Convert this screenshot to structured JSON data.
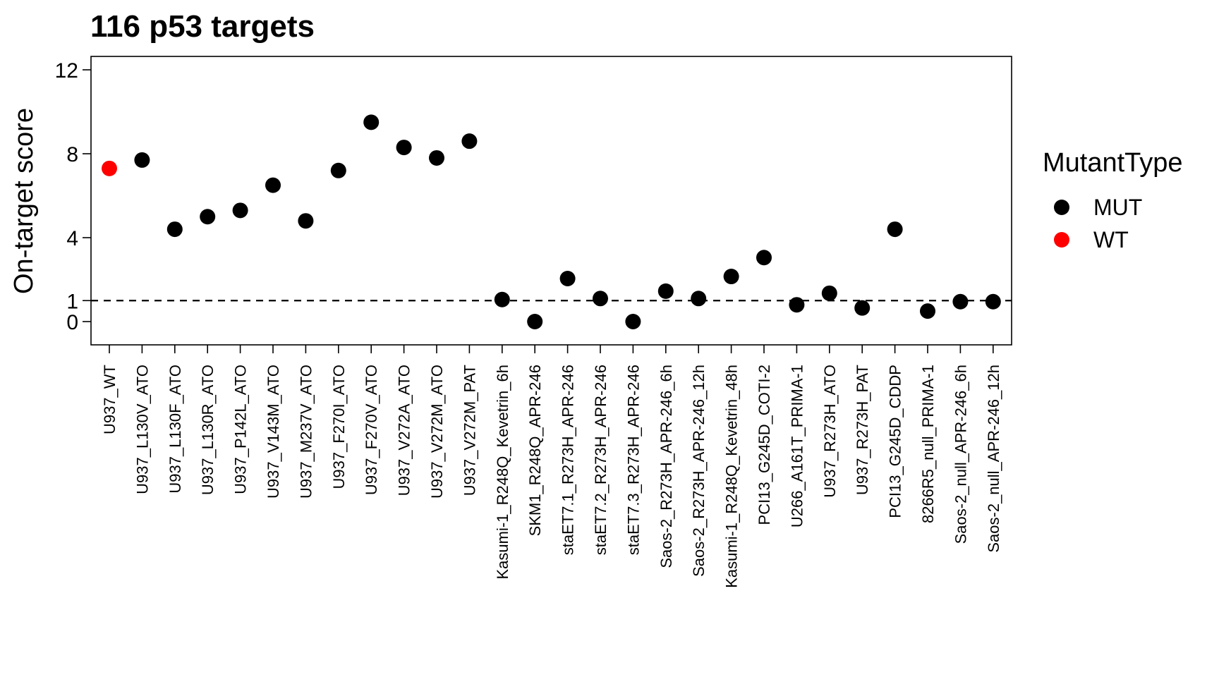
{
  "chart_data": {
    "type": "scatter",
    "title": "116 p53 targets",
    "xlabel": "",
    "ylabel": "On-target score",
    "ylim": [
      -1.1,
      12.6
    ],
    "yticks": [
      0,
      1,
      4,
      8,
      12
    ],
    "reference_line": {
      "y": 1,
      "style": "dashed"
    },
    "grid": false,
    "legend": {
      "title": "MutantType",
      "placement": "right",
      "entries": [
        {
          "label": "MUT",
          "color": "#000000"
        },
        {
          "label": "WT",
          "color": "#ff0000"
        }
      ]
    },
    "categories": [
      "U937_WT",
      "U937_L130V_ATO",
      "U937_L130F_ATO",
      "U937_L130R_ATO",
      "U937_P142L_ATO",
      "U937_V143M_ATO",
      "U937_M237V_ATO",
      "U937_F270I_ATO",
      "U937_F270V_ATO",
      "U937_V272A_ATO",
      "U937_V272M_ATO",
      "U937_V272M_PAT",
      "Kasumi-1_R248Q_Kevetrin_6h",
      "SKM1_R248Q_APR-246",
      "staET7.1_R273H_APR-246",
      "staET7.2_R273H_APR-246",
      "staET7.3_R273H_APR-246",
      "Saos-2_R273H_APR-246_6h",
      "Saos-2_R273H_APR-246_12h",
      "Kasumi-1_R248Q_Kevetrin_48h",
      "PCI13_G245D_COTI-2",
      "U266_A161T_PRIMA-1",
      "U937_R273H_ATO",
      "U937_R273H_PAT",
      "PCI13_G245D_CDDP",
      "8266R5_null_PRIMA-1",
      "Saos-2_null_APR-246_6h",
      "Saos-2_null_APR-246_12h"
    ],
    "values": [
      7.3,
      7.7,
      4.4,
      5.0,
      5.3,
      6.5,
      4.8,
      7.2,
      9.5,
      8.3,
      7.8,
      8.6,
      1.05,
      0.0,
      2.05,
      1.1,
      0.0,
      1.45,
      1.1,
      2.15,
      3.05,
      0.8,
      1.35,
      0.65,
      4.4,
      0.5,
      0.95,
      0.95
    ],
    "mutant_type": [
      "WT",
      "MUT",
      "MUT",
      "MUT",
      "MUT",
      "MUT",
      "MUT",
      "MUT",
      "MUT",
      "MUT",
      "MUT",
      "MUT",
      "MUT",
      "MUT",
      "MUT",
      "MUT",
      "MUT",
      "MUT",
      "MUT",
      "MUT",
      "MUT",
      "MUT",
      "MUT",
      "MUT",
      "MUT",
      "MUT",
      "MUT",
      "MUT"
    ],
    "colors": {
      "MUT": "#000000",
      "WT": "#ff0000"
    }
  }
}
